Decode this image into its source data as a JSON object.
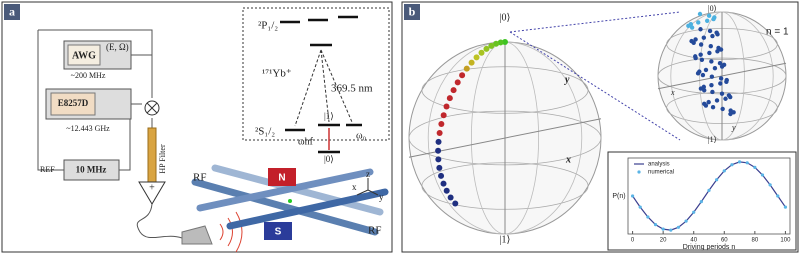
{
  "panel_a": {
    "label": "a",
    "awg": "AWG",
    "awg_params": "(E, Ω)",
    "awg_freq": "~200 MHz",
    "synth": "E8257D",
    "synth_freq": "~12.443 GHz",
    "filter": "HP Filter",
    "ref": "REF",
    "clock": "10 MHz",
    "amp": "+",
    "p_level": "²P₁/₂",
    "isotope": "¹⁷¹Yb⁺",
    "wavelength": "369.5 nm",
    "s_level": "²S₁/₂",
    "ket1": "|1⟩",
    "ket0": "|0⟩",
    "omega_hf": "ωhf",
    "omega_0": "ω₀",
    "rf_left": "RF",
    "rf_right": "RF",
    "north": "N",
    "south": "S",
    "axis_x": "x",
    "axis_y": "y",
    "axis_z": "z"
  },
  "panel_b": {
    "label": "b",
    "ket0": "|0⟩",
    "ket1": "|1⟩",
    "axis_x": "x",
    "axis_y": "y",
    "n_label": "n = 1",
    "small_ket0": "|0⟩",
    "small_ket1": "|1⟩",
    "small_x": "x",
    "small_y": "y"
  },
  "chart_data": {
    "type": "line",
    "xlabel": "Driving periods n",
    "ylabel": "P(n)",
    "x": [
      0,
      5,
      10,
      15,
      20,
      25,
      30,
      35,
      40,
      45,
      50,
      55,
      60,
      65,
      70,
      75,
      80,
      85,
      90,
      95,
      100
    ],
    "series": [
      {
        "name": "analysis",
        "color": "#3b3f8f",
        "values": [
          0.5,
          0.354,
          0.224,
          0.123,
          0.064,
          0.051,
          0.088,
          0.169,
          0.286,
          0.426,
          0.574,
          0.714,
          0.831,
          0.912,
          0.949,
          0.937,
          0.877,
          0.776,
          0.646,
          0.5,
          0.354
        ]
      },
      {
        "name": "numerical",
        "color": "#5ab4e6",
        "values": [
          0.5,
          0.354,
          0.224,
          0.123,
          0.064,
          0.051,
          0.088,
          0.169,
          0.286,
          0.426,
          0.574,
          0.714,
          0.831,
          0.912,
          0.949,
          0.937,
          0.877,
          0.776,
          0.646,
          0.5,
          0.354
        ]
      }
    ],
    "xlim": [
      -3,
      103
    ],
    "ylim": [
      0,
      1
    ],
    "xticks": [
      0,
      20,
      40,
      60,
      80,
      100
    ],
    "legend": "upper-left"
  }
}
